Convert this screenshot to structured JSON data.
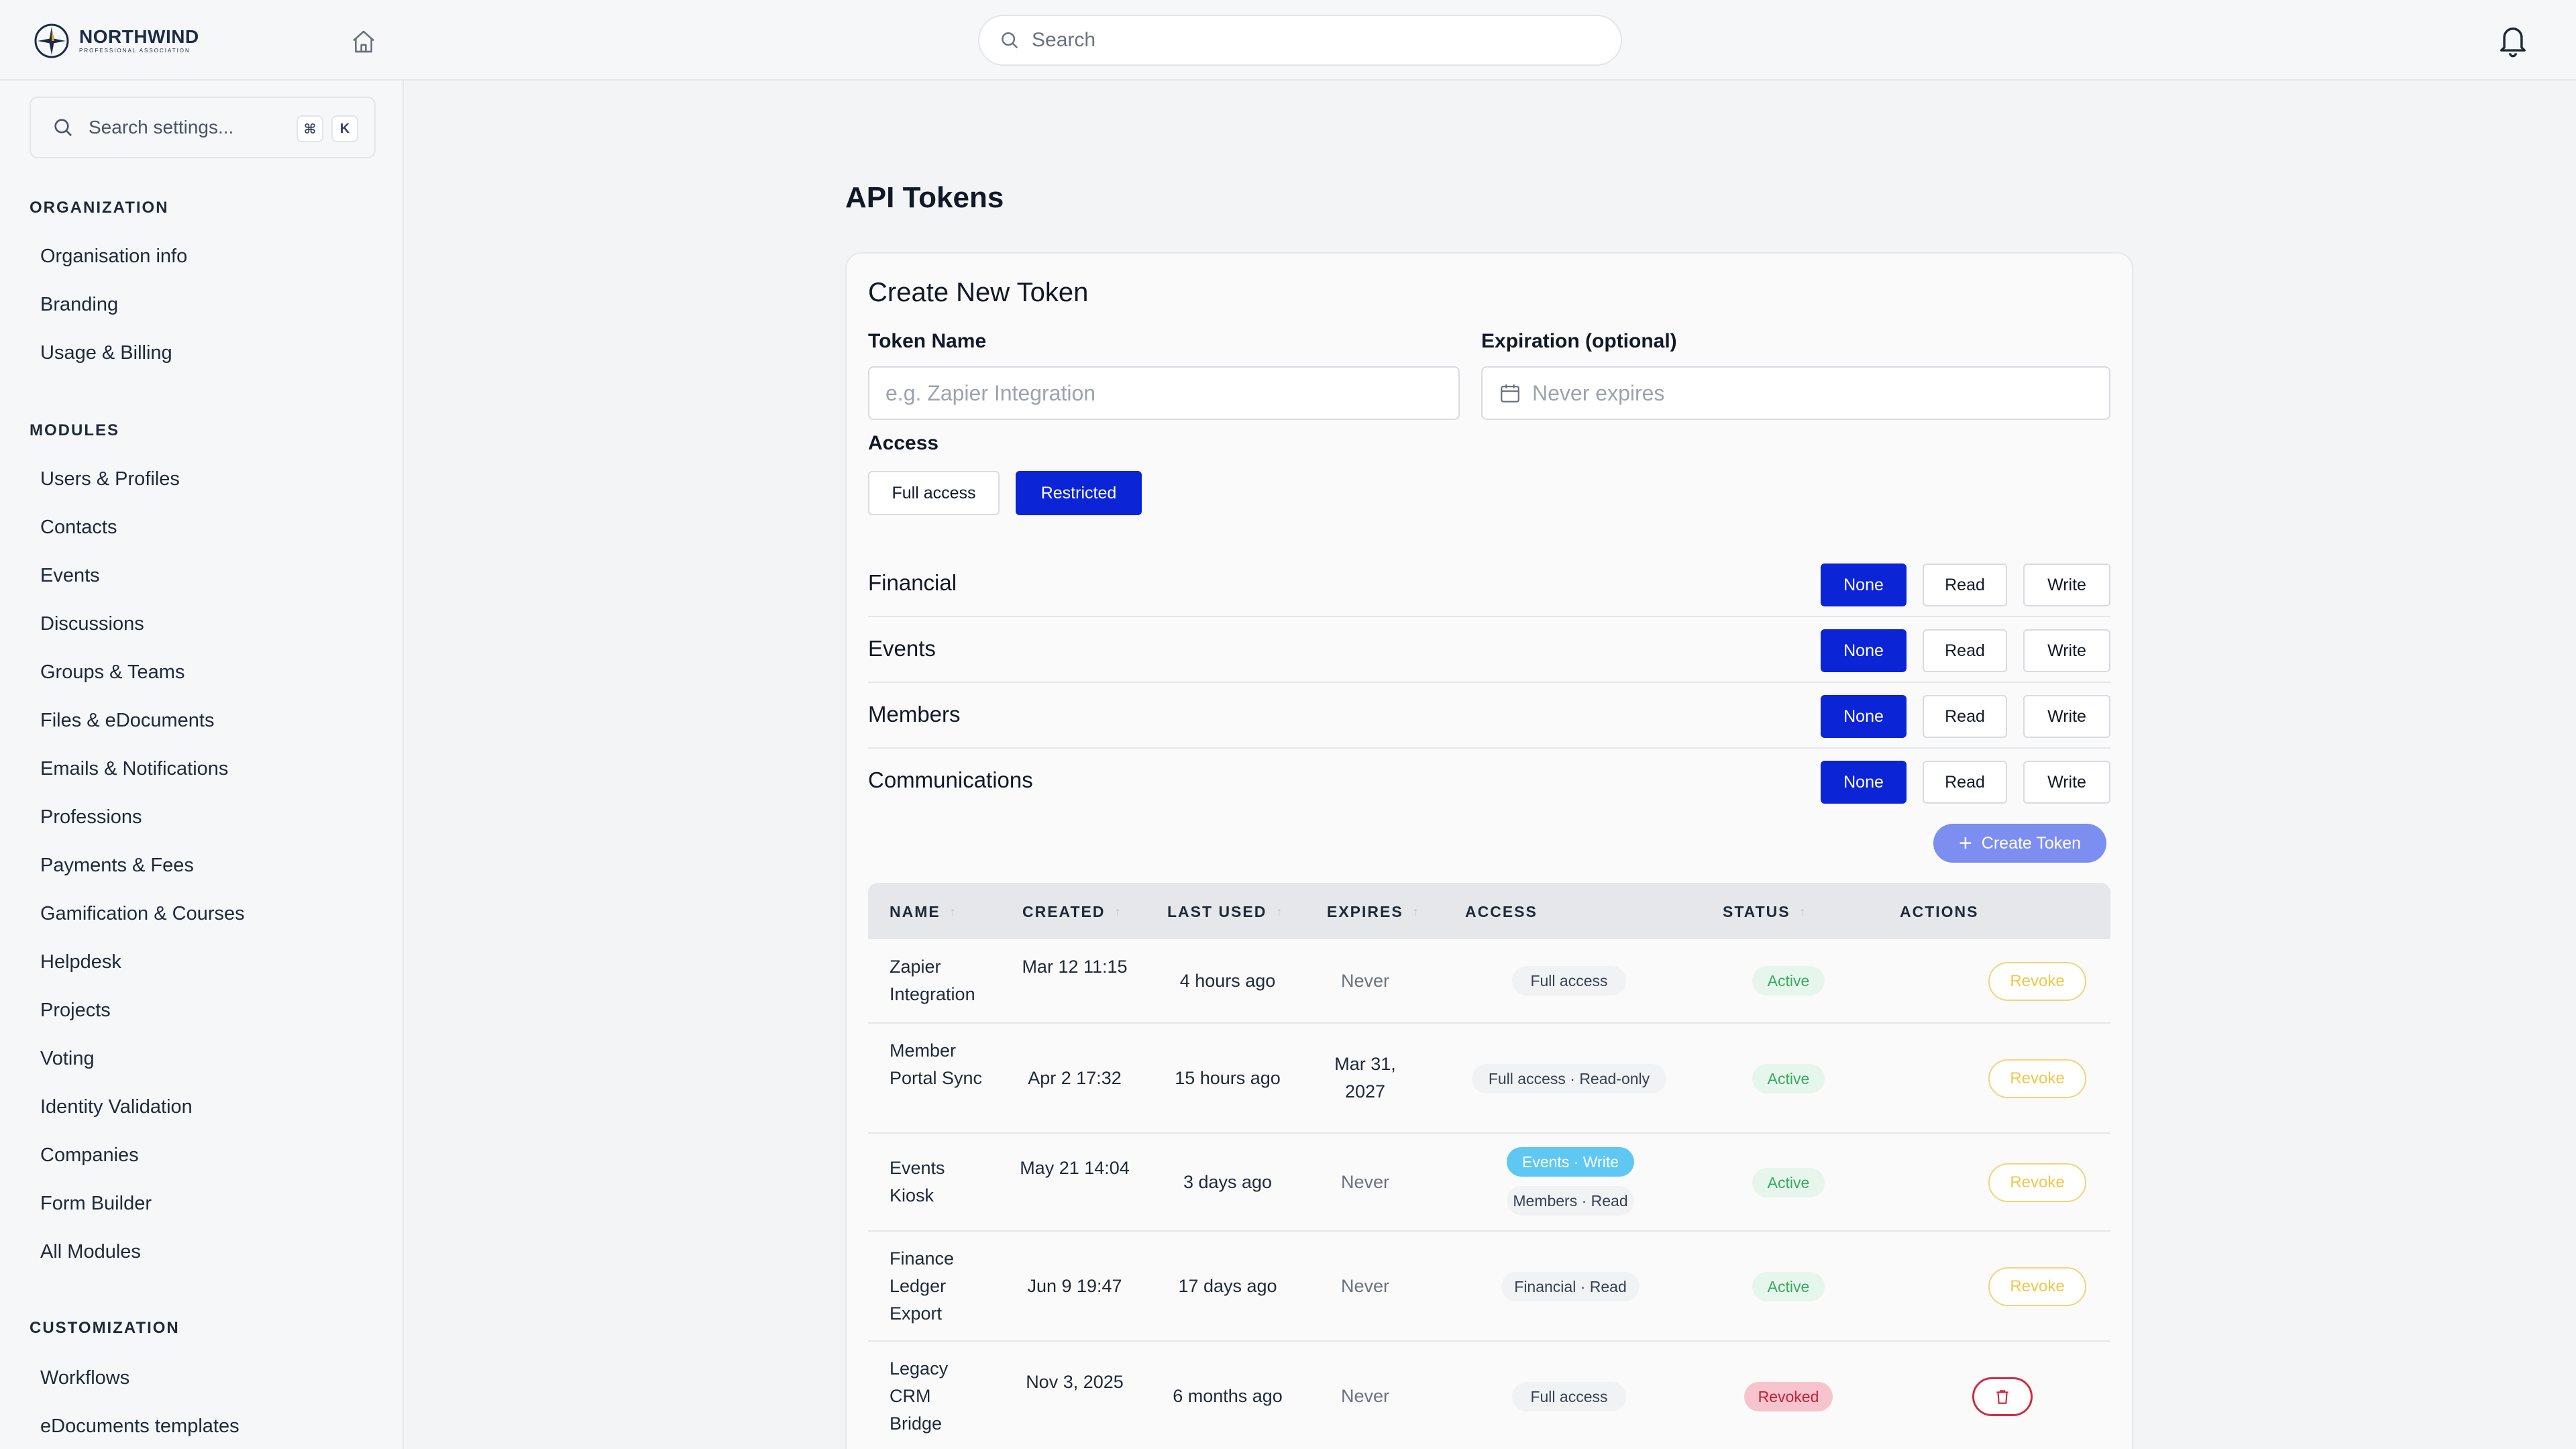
{
  "brand": {
    "name": "NORTHWIND",
    "subtitle": "PROFESSIONAL ASSOCIATION"
  },
  "topbar": {
    "search_placeholder": "Search"
  },
  "sidebar": {
    "search_placeholder": "Search settings...",
    "shortcut_keys": [
      "⌘",
      "K"
    ],
    "sections": [
      {
        "title": "ORGANIZATION",
        "items": [
          "Organisation info",
          "Branding",
          "Usage & Billing"
        ]
      },
      {
        "title": "MODULES",
        "items": [
          "Users & Profiles",
          "Contacts",
          "Events",
          "Discussions",
          "Groups & Teams",
          "Files & eDocuments",
          "Emails & Notifications",
          "Professions",
          "Payments & Fees",
          "Gamification & Courses",
          "Helpdesk",
          "Projects",
          "Voting",
          "Identity Validation",
          "Companies",
          "Form Builder",
          "All Modules"
        ]
      },
      {
        "title": "CUSTOMIZATION",
        "items": [
          "Workflows",
          "eDocuments templates"
        ]
      }
    ]
  },
  "page": {
    "title": "API Tokens"
  },
  "form": {
    "title": "Create New Token",
    "token_name_label": "Token Name",
    "token_name_placeholder": "e.g. Zapier Integration",
    "expiration_label": "Expiration (optional)",
    "expiration_placeholder": "Never expires",
    "access_label": "Access",
    "access_options": [
      "Full access",
      "Restricted"
    ],
    "access_selected": "Restricted",
    "permission_levels": [
      "None",
      "Read",
      "Write"
    ],
    "permissions": [
      {
        "label": "Financial",
        "selected": "None"
      },
      {
        "label": "Events",
        "selected": "None"
      },
      {
        "label": "Members",
        "selected": "None"
      },
      {
        "label": "Communications",
        "selected": "None"
      }
    ],
    "create_button": "Create Token"
  },
  "table": {
    "columns": [
      "NAME",
      "CREATED",
      "LAST USED",
      "EXPIRES",
      "ACCESS",
      "STATUS",
      "ACTIONS"
    ],
    "rows": [
      {
        "name": "Zapier Integration",
        "created": "Mar 12 11:15",
        "last_used": "4 hours ago",
        "expires": "Never",
        "access": [
          {
            "text": "Full access",
            "style": "gray"
          }
        ],
        "status": "Active",
        "action": "Revoke"
      },
      {
        "name": "Member Portal Sync",
        "created": "Apr 2 17:32",
        "last_used": "15 hours ago",
        "expires": "Mar 31, 2027",
        "access": [
          {
            "text": "Full access · Read-only",
            "style": "gray"
          }
        ],
        "status": "Active",
        "action": "Revoke"
      },
      {
        "name": "Events Kiosk",
        "created": "May 21 14:04",
        "last_used": "3 days ago",
        "expires": "Never",
        "access": [
          {
            "text": "Events · Write",
            "style": "blue"
          },
          {
            "text": "Members · Read",
            "style": "gray"
          }
        ],
        "status": "Active",
        "action": "Revoke"
      },
      {
        "name": "Finance Ledger Export",
        "created": "Jun 9 19:47",
        "last_used": "17 days ago",
        "expires": "Never",
        "access": [
          {
            "text": "Financial · Read",
            "style": "gray"
          }
        ],
        "status": "Active",
        "action": "Revoke"
      },
      {
        "name": "Legacy CRM Bridge",
        "created": "Nov 3, 2025",
        "last_used": "6 months ago",
        "expires": "Never",
        "access": [
          {
            "text": "Full access",
            "style": "gray"
          }
        ],
        "status": "Revoked",
        "action": "delete-icon"
      }
    ]
  },
  "colors": {
    "primary": "#0a24d6",
    "create_button": "#7c8ef0",
    "active": "#3aa860",
    "revoked": "#c0203a",
    "revoke_outline": "#f3c649"
  }
}
